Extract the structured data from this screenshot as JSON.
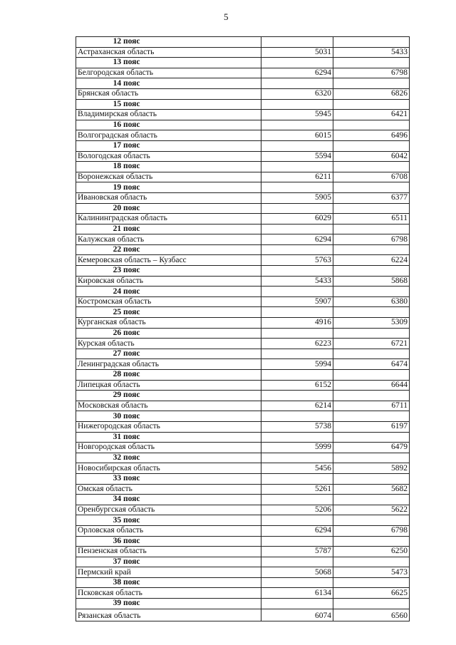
{
  "page_number": "5",
  "rows": [
    {
      "zone": "12 пояс",
      "region": "Астраханская область",
      "v1": "5031",
      "v2": "5433"
    },
    {
      "zone": "13 пояс",
      "region": "Белгородская область",
      "v1": "6294",
      "v2": "6798"
    },
    {
      "zone": "14 пояс",
      "region": "Брянская область",
      "v1": "6320",
      "v2": "6826"
    },
    {
      "zone": "15 пояс",
      "region": "Владимирская область",
      "v1": "5945",
      "v2": "6421"
    },
    {
      "zone": "16 пояс",
      "region": "Волгоградская область",
      "v1": "6015",
      "v2": "6496"
    },
    {
      "zone": "17 пояс",
      "region": "Вологодская область",
      "v1": "5594",
      "v2": "6042"
    },
    {
      "zone": "18 пояс",
      "region": "Воронежская область",
      "v1": "6211",
      "v2": "6708"
    },
    {
      "zone": "19 пояс",
      "region": "Ивановская область",
      "v1": "5905",
      "v2": "6377"
    },
    {
      "zone": "20 пояс",
      "region": "Калининградская область",
      "v1": "6029",
      "v2": "6511"
    },
    {
      "zone": "21 пояс",
      "region": "Калужская область",
      "v1": "6294",
      "v2": "6798"
    },
    {
      "zone": "22 пояс",
      "region": "Кемеровская область – Кузбасс",
      "v1": "5763",
      "v2": "6224"
    },
    {
      "zone": "23 пояс",
      "region": "Кировская область",
      "v1": "5433",
      "v2": "5868"
    },
    {
      "zone": "24 пояс",
      "region": "Костромская область",
      "v1": "5907",
      "v2": "6380"
    },
    {
      "zone": "25 пояс",
      "region": "Курганская область",
      "v1": "4916",
      "v2": "5309"
    },
    {
      "zone": "26 пояс",
      "region": "Курская область",
      "v1": "6223",
      "v2": "6721"
    },
    {
      "zone": "27 пояс",
      "region": "Ленинградская область",
      "v1": "5994",
      "v2": "6474"
    },
    {
      "zone": "28 пояс",
      "region": "Липецкая область",
      "v1": "6152",
      "v2": "6644"
    },
    {
      "zone": "29 пояс",
      "region": "Московская область",
      "v1": "6214",
      "v2": "6711"
    },
    {
      "zone": "30 пояс",
      "region": "Нижегородская область",
      "v1": "5738",
      "v2": "6197"
    },
    {
      "zone": "31 пояс",
      "region": "Новгородская область",
      "v1": "5999",
      "v2": "6479"
    },
    {
      "zone": "32 пояс",
      "region": "Новосибирская область",
      "v1": "5456",
      "v2": "5892"
    },
    {
      "zone": "33 пояс",
      "region": "Омская область",
      "v1": "5261",
      "v2": "5682"
    },
    {
      "zone": "34 пояс",
      "region": "Оренбургская область",
      "v1": "5206",
      "v2": "5622"
    },
    {
      "zone": "35 пояс",
      "region": "Орловская область",
      "v1": "6294",
      "v2": "6798"
    },
    {
      "zone": "36 пояс",
      "region": "Пензенская область",
      "v1": "5787",
      "v2": "6250"
    },
    {
      "zone": "37 пояс",
      "region": "Пермский край",
      "v1": "5068",
      "v2": "5473"
    },
    {
      "zone": "38 пояс",
      "region": "Псковская область",
      "v1": "6134",
      "v2": "6625"
    },
    {
      "zone": "39 пояс",
      "region": "Рязанская область",
      "v1": "6074",
      "v2": "6560"
    }
  ]
}
